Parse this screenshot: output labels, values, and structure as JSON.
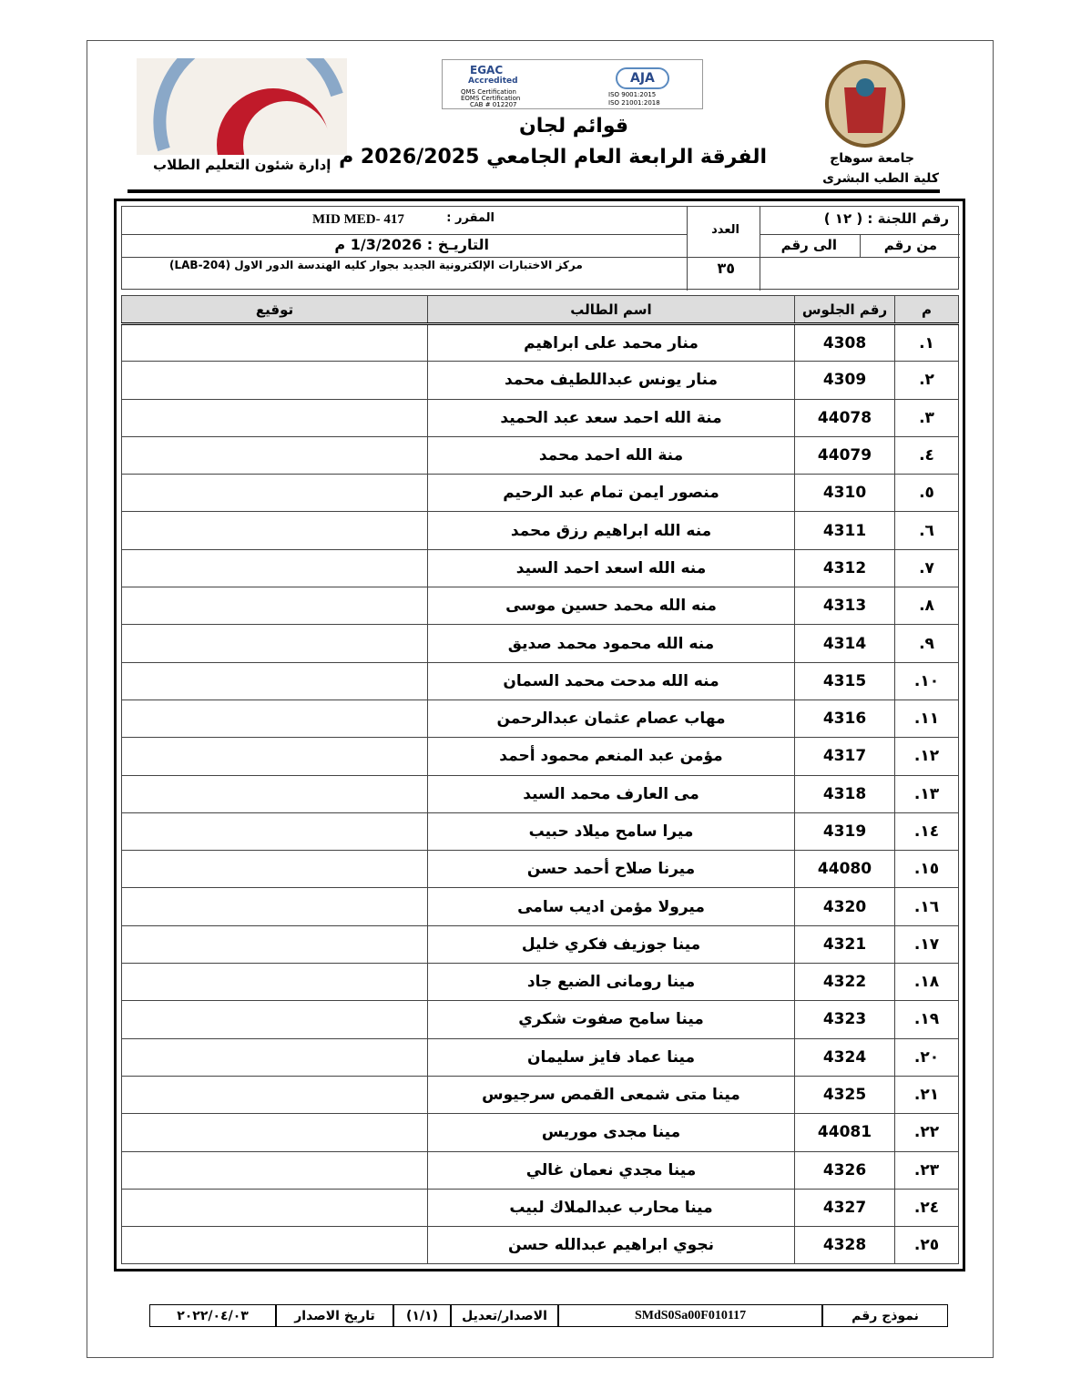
{
  "header": {
    "university": "جامعة سوهاج",
    "faculty": "كلية الطب البشرى",
    "title": "قوائم لجان",
    "subtitle": "الفرقة الرابعة العام الجامعي 2026/2025 م",
    "department": "إدارة شئون التعليم الطلاب",
    "cert_logo": [
      "EGAC",
      "Accredited",
      "QMS Certification",
      "EOMS Certification",
      "CAB # 012207",
      "AJA",
      "ISO 9001:2015",
      "ISO 21001:2018"
    ]
  },
  "info": {
    "committee": "رقم اللجنة : ( ١٢ )",
    "from_label": "من رقم",
    "to_label": "الى رقم",
    "count_label": "العدد",
    "count": "٣٥",
    "course_label": "المقرر :",
    "course": "MID MED- 417",
    "date": "التاريـخ : 1/3/2026 م",
    "location": "مركز الاختبارات الإلكترونية الجديد بجوار كليه الهندسة الدور الاول (LAB-204)"
  },
  "table": {
    "columns": [
      "م",
      "رقم الجلوس",
      "اسم الطالب",
      "توقيع"
    ],
    "rows": [
      [
        "١.",
        "4308",
        "منار محمد على ابراهيم"
      ],
      [
        "٢.",
        "4309",
        "منار يونس عبداللطيف محمد"
      ],
      [
        "٣.",
        "44078",
        "منة الله احمد سعد عبد الحميد"
      ],
      [
        "٤.",
        "44079",
        "منة الله احمد محمد"
      ],
      [
        "٥.",
        "4310",
        "منصور ايمن تمام عبد الرحيم"
      ],
      [
        "٦.",
        "4311",
        "منه الله ابراهيم رزق محمد"
      ],
      [
        "٧.",
        "4312",
        "منه الله اسعد احمد السيد"
      ],
      [
        "٨.",
        "4313",
        "منه الله محمد حسين موسى"
      ],
      [
        "٩.",
        "4314",
        "منه الله محمود محمد صديق"
      ],
      [
        "١٠.",
        "4315",
        "منه الله مدحت محمد السمان"
      ],
      [
        "١١.",
        "4316",
        "مهاب عصام عثمان عبدالرحمن"
      ],
      [
        "١٢.",
        "4317",
        "مؤمن عبد المنعم محمود أحمد"
      ],
      [
        "١٣.",
        "4318",
        "مى العارف محمد السيد"
      ],
      [
        "١٤.",
        "4319",
        "ميرا سامح ميلاد حبيب"
      ],
      [
        "١٥.",
        "44080",
        "ميرنا صلاح أحمد حسن"
      ],
      [
        "١٦.",
        "4320",
        "ميرولا مؤمن اديب سامى"
      ],
      [
        "١٧.",
        "4321",
        "مينا جوزيف فكري خليل"
      ],
      [
        "١٨.",
        "4322",
        "مينا رومانى الضبع جاد"
      ],
      [
        "١٩.",
        "4323",
        "مينا سامح صفوت شكري"
      ],
      [
        "٢٠.",
        "4324",
        "مينا عماد فايز سليمان"
      ],
      [
        "٢١.",
        "4325",
        "مينا متى شمعى القمص سرجيوس"
      ],
      [
        "٢٢.",
        "44081",
        "مينا مجدى موريس"
      ],
      [
        "٢٣.",
        "4326",
        "مينا مجدي نعمان غالي"
      ],
      [
        "٢٤.",
        "4327",
        "مينا محارب عبدالملاك لبيب"
      ],
      [
        "٢٥.",
        "4328",
        "نجوي ابراهيم عبدالله حسن"
      ]
    ]
  },
  "footer": {
    "form_label": "نموذج رقم",
    "form_number": "SMdS0Sa00F010117",
    "version_label": "الاصدار/تعديل",
    "version": "(١/١)",
    "date_label": "تاريخ الاصدار",
    "date": "٢٠٢٢/٠٤/٠٣"
  }
}
